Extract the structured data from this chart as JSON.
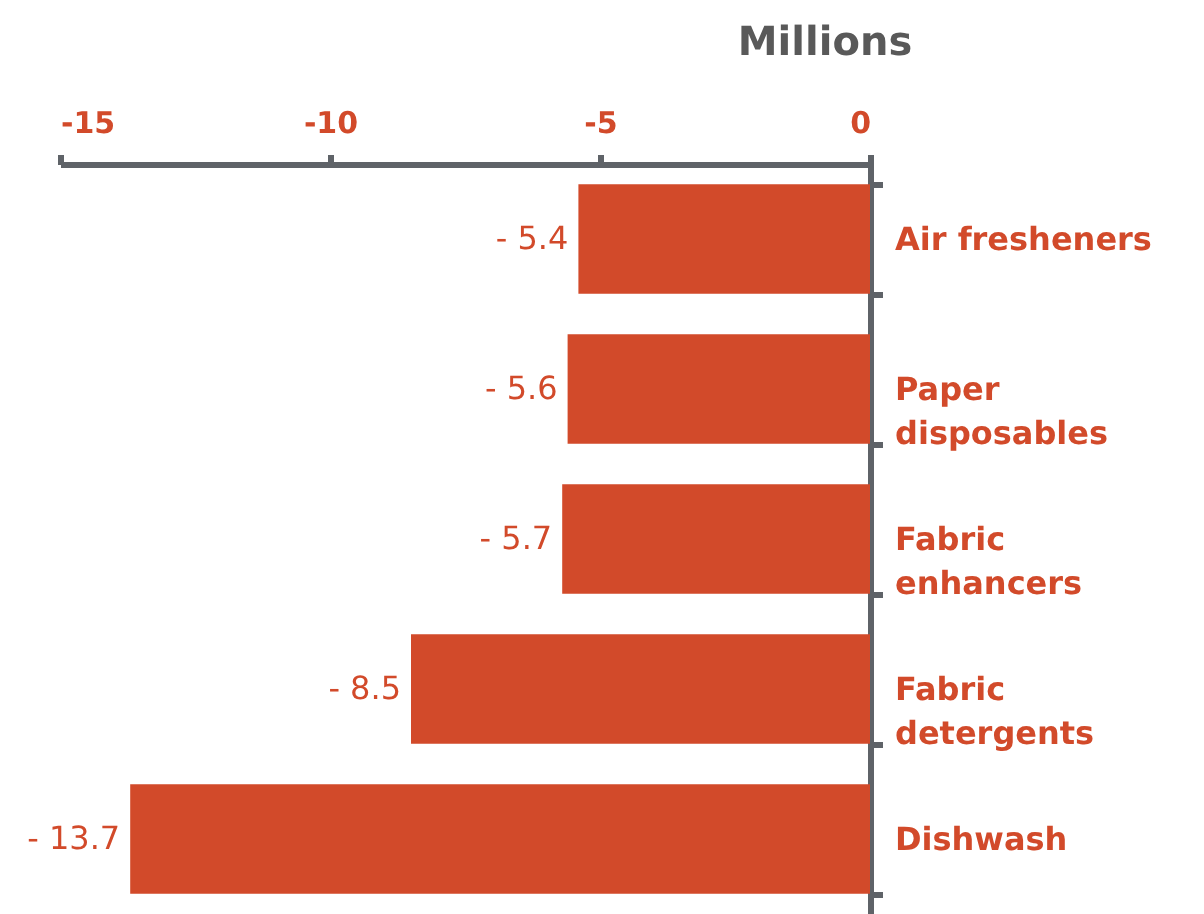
{
  "chart_data": {
    "type": "bar",
    "orientation": "horizontal",
    "xlabel": "Millions",
    "categories": [
      "Air fresheners",
      "Paper disposables",
      "Fabric enhancers",
      "Fabric detergents",
      "Dishwash"
    ],
    "values": [
      -5.4,
      -5.6,
      -5.7,
      -8.5,
      -13.7
    ],
    "color": "#d24a2a",
    "value_labels": [
      "- 5.4",
      "- 5.6",
      "- 5.7",
      "- 8.5",
      "- 13.7"
    ],
    "xlim": [
      -15,
      0
    ],
    "xticks": [
      -15,
      -10,
      -5,
      0
    ]
  }
}
